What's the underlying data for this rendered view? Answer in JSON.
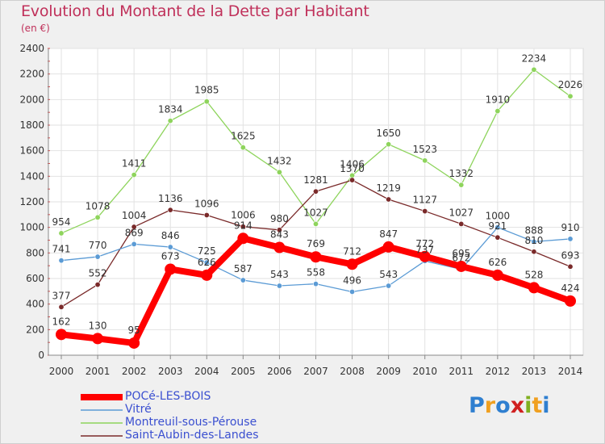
{
  "header": {
    "title": "Evolution du Montant de la Dette par Habitant",
    "unit": "(en €)"
  },
  "logo": {
    "text": "Proxiti",
    "letters": [
      {
        "ch": "P",
        "color": "#2f7fd0"
      },
      {
        "ch": "r",
        "color": "#f0a020"
      },
      {
        "ch": "o",
        "color": "#2f7fd0"
      },
      {
        "ch": "x",
        "color": "#d02020"
      },
      {
        "ch": "i",
        "color": "#80b020"
      },
      {
        "ch": "t",
        "color": "#f0a020"
      },
      {
        "ch": "i",
        "color": "#2f7fd0"
      }
    ]
  },
  "chart_data": {
    "type": "line",
    "title": "Evolution du Montant de la Dette par Habitant",
    "subtitle": "(en €)",
    "x": [
      "2000",
      "2001",
      "2002",
      "2003",
      "2004",
      "2005",
      "2006",
      "2007",
      "2008",
      "2009",
      "2010",
      "2011",
      "2012",
      "2013",
      "2014"
    ],
    "ylim": [
      0,
      2400
    ],
    "yticks": [
      0,
      200,
      400,
      600,
      800,
      1000,
      1200,
      1400,
      1600,
      1800,
      2000,
      2200,
      2400
    ],
    "grid": true,
    "legend_position": "bottom-left",
    "series": [
      {
        "name": "POCé-LES-BOIS",
        "color": "#ff0000",
        "values": [
          162,
          130,
          95,
          673,
          626,
          914,
          843,
          769,
          712,
          847,
          772,
          695,
          626,
          528,
          424
        ]
      },
      {
        "name": "Vitré",
        "color": "#5b9bd5",
        "values": [
          741,
          770,
          869,
          846,
          725,
          587,
          543,
          558,
          496,
          543,
          737,
          672,
          1000,
          888,
          910
        ]
      },
      {
        "name": "Montreuil-sous-Pérouse",
        "color": "#8ed45c",
        "values": [
          954,
          1078,
          1411,
          1834,
          1985,
          1625,
          1432,
          1027,
          1406,
          1650,
          1523,
          1332,
          1910,
          2234,
          2026
        ]
      },
      {
        "name": "Saint-Aubin-des-Landes",
        "color": "#7a2a2a",
        "values": [
          377,
          552,
          1004,
          1136,
          1096,
          1006,
          980,
          1281,
          1370,
          1219,
          1127,
          1027,
          921,
          810,
          693
        ]
      }
    ]
  }
}
